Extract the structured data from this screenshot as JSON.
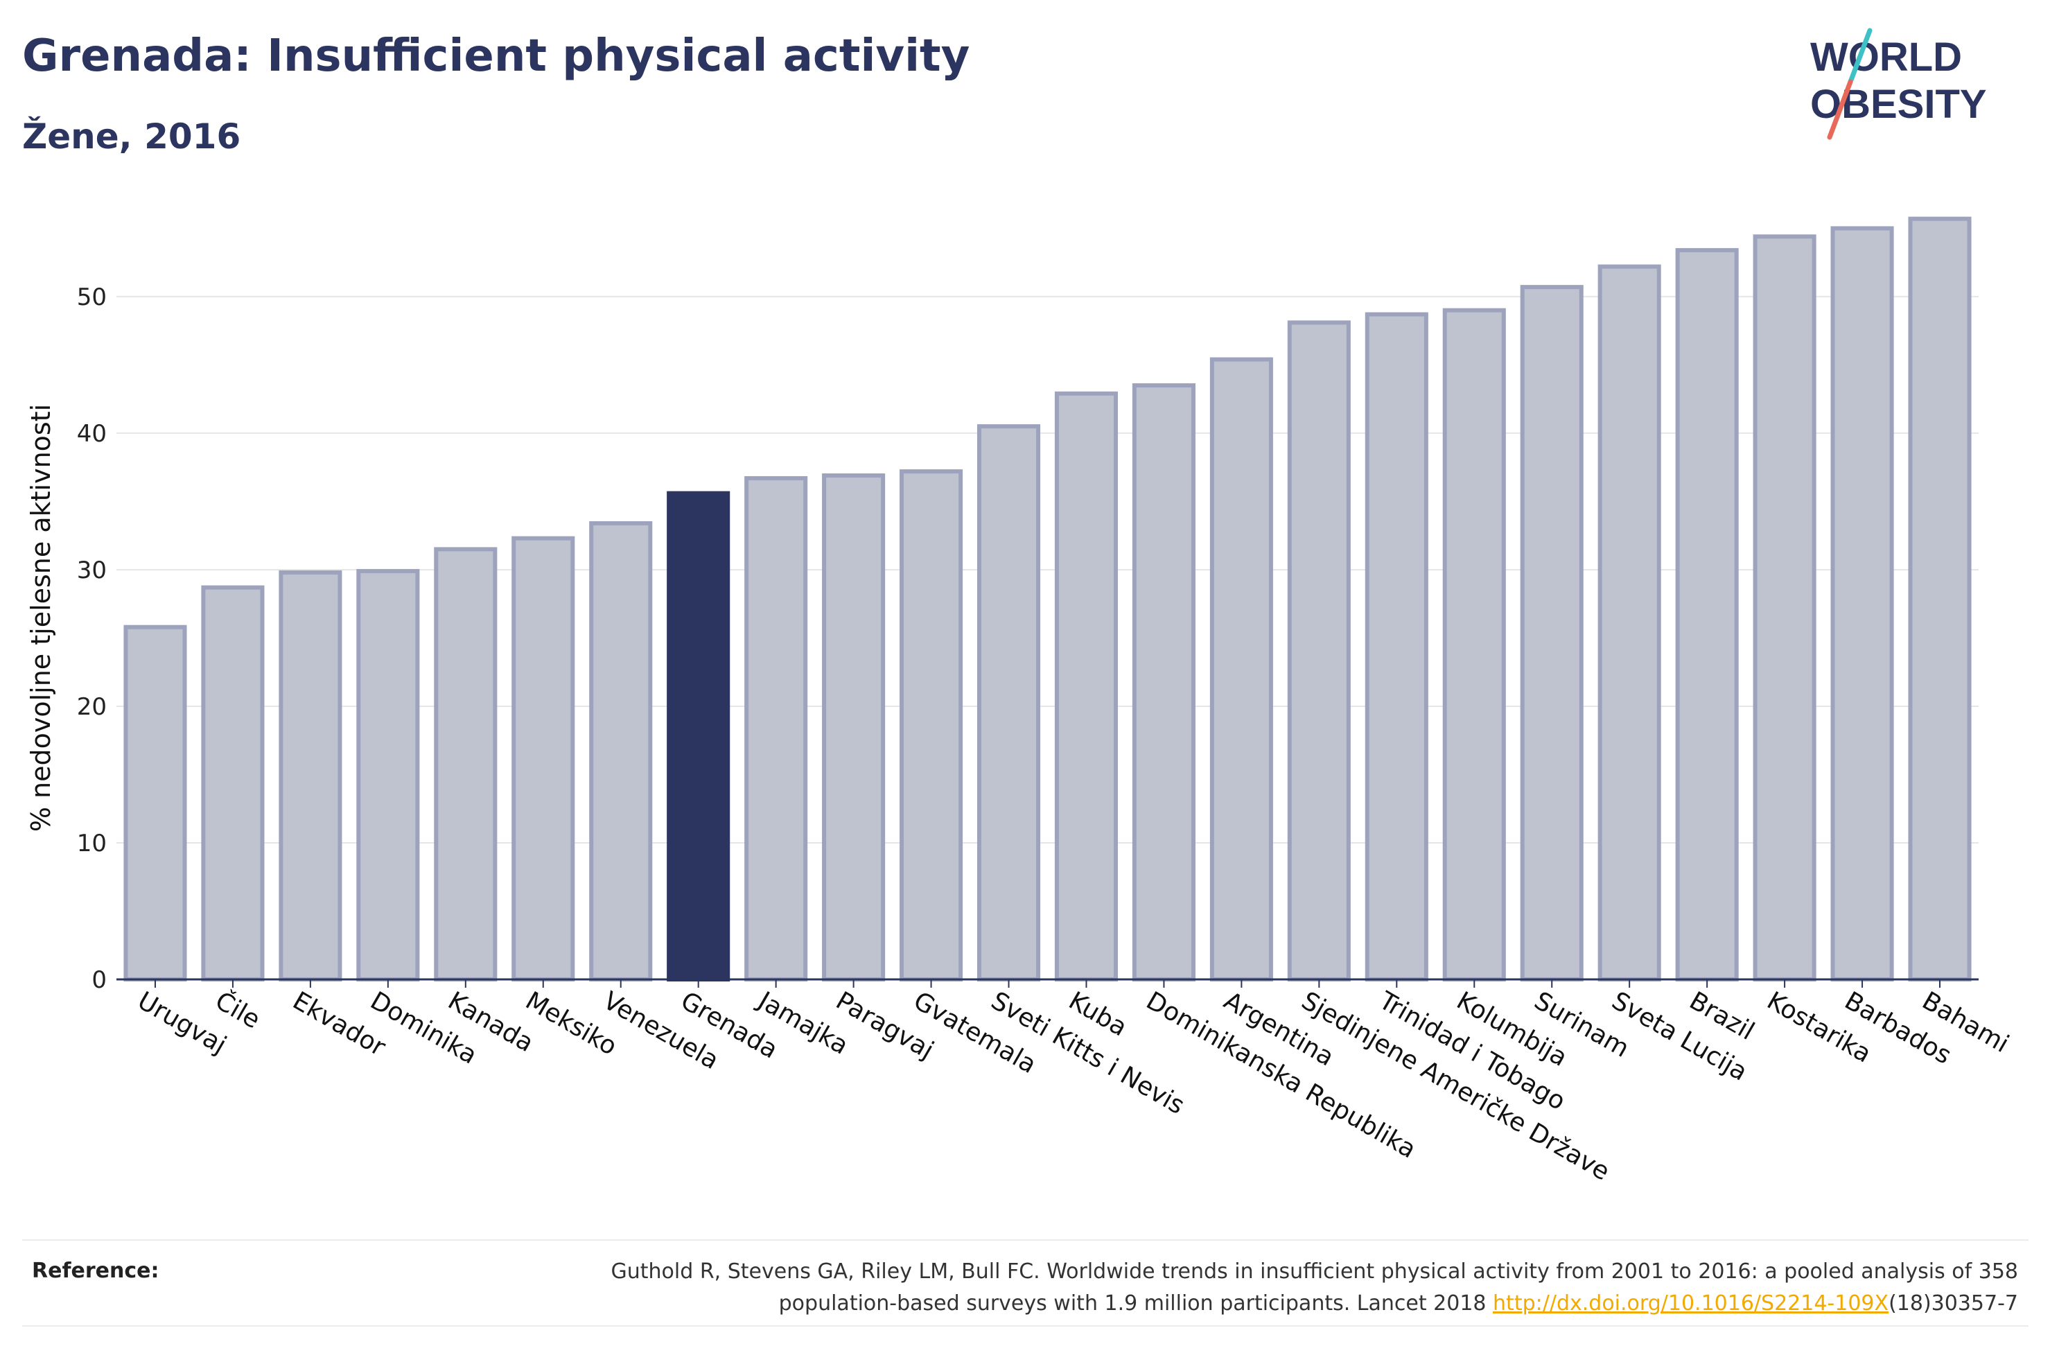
{
  "header": {
    "title": "Grenada: Insufficient physical activity",
    "subtitle": "Žene, 2016"
  },
  "logo": {
    "line1": "WORLD",
    "line2": "OBESITY",
    "colors": {
      "text": "#2b3560",
      "slash_top": "#3ec1c6",
      "slash_bottom": "#e8685a"
    }
  },
  "chart_data": {
    "type": "bar",
    "ylabel": "% nedovoljne tjelesne aktivnosti",
    "xlabel": "",
    "ylim": [
      0,
      57
    ],
    "yticks": [
      0,
      10,
      20,
      30,
      40,
      50
    ],
    "grid": true,
    "highlight": "Grenada",
    "colors": {
      "bar": "#bfc2cf",
      "bar_edge": "#9ea3bd",
      "highlight": "#2b3560",
      "grid": "#e6e6e6",
      "axis": "#2b3560"
    },
    "categories": [
      "Urugvaj",
      "Čile",
      "Ekvador",
      "Dominika",
      "Kanada",
      "Meksiko",
      "Venezuela",
      "Grenada",
      "Jamajka",
      "Paragvaj",
      "Gvatemala",
      "Sveti Kitts i Nevis",
      "Kuba",
      "Dominikanska Republika",
      "Argentina",
      "Sjedinjene Američke Države",
      "Trinidad i Tobago",
      "Kolumbija",
      "Surinam",
      "Sveta Lucija",
      "Brazil",
      "Kostarika",
      "Barbados",
      "Bahami"
    ],
    "values": [
      25.8,
      28.7,
      29.8,
      29.9,
      31.5,
      32.3,
      33.4,
      35.6,
      36.7,
      36.9,
      37.2,
      40.5,
      42.9,
      43.5,
      45.4,
      48.1,
      48.7,
      49.0,
      50.7,
      52.2,
      53.4,
      54.4,
      55.0,
      55.7
    ]
  },
  "reference": {
    "label": "Reference:",
    "text_before_link": "Guthold R, Stevens GA, Riley LM, Bull FC. Worldwide trends in insufficient physical activity from 2001 to 2016: a pooled analysis of 358 population-based surveys with 1.9 million participants. Lancet 2018 ",
    "link_text": "http://dx.doi.org/10.1016/S2214-109X",
    "text_after_link": "(18)30357-7"
  }
}
